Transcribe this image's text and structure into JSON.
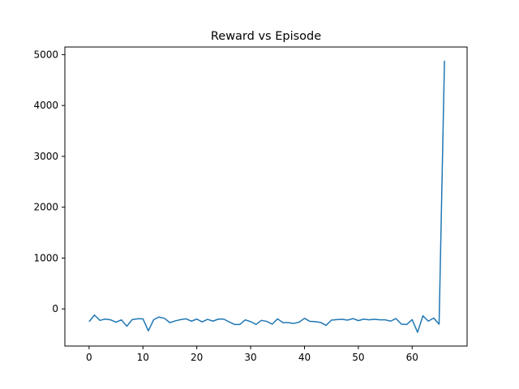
{
  "chart_data": {
    "type": "line",
    "title": "Reward vs Episode",
    "xlabel": "",
    "ylabel": "",
    "xlim": [
      -4.5,
      70.2
    ],
    "ylim": [
      -730,
      5150
    ],
    "x_ticks": [
      0,
      10,
      20,
      30,
      40,
      50,
      60
    ],
    "y_ticks": [
      0,
      1000,
      2000,
      3000,
      4000,
      5000
    ],
    "grid": false,
    "legend": "none",
    "line_color": "#1f77b4",
    "series": [
      {
        "x": [
          0,
          1,
          2,
          3,
          4,
          5,
          6,
          7,
          8,
          9,
          10,
          11,
          12,
          13,
          14,
          15,
          16,
          17,
          18,
          19,
          20,
          21,
          22,
          23,
          24,
          25,
          26,
          27,
          28,
          29,
          30,
          31,
          32,
          33,
          34,
          35,
          36,
          37,
          38,
          39,
          40,
          41,
          42,
          43,
          44,
          45,
          46,
          47,
          48,
          49,
          50,
          51,
          52,
          53,
          54,
          55,
          56,
          57,
          58,
          59,
          60,
          61,
          62,
          63,
          64,
          65,
          66
        ],
        "values": [
          -250,
          -120,
          -225,
          -200,
          -215,
          -260,
          -215,
          -340,
          -210,
          -195,
          -195,
          -430,
          -210,
          -160,
          -185,
          -270,
          -235,
          -210,
          -195,
          -240,
          -200,
          -255,
          -205,
          -240,
          -200,
          -200,
          -255,
          -305,
          -305,
          -215,
          -250,
          -305,
          -225,
          -245,
          -300,
          -195,
          -270,
          -270,
          -285,
          -260,
          -185,
          -245,
          -250,
          -265,
          -325,
          -220,
          -210,
          -205,
          -220,
          -190,
          -230,
          -200,
          -215,
          -205,
          -215,
          -215,
          -240,
          -190,
          -300,
          -305,
          -210,
          -460,
          -135,
          -240,
          -180,
          -300,
          4880
        ]
      }
    ]
  }
}
